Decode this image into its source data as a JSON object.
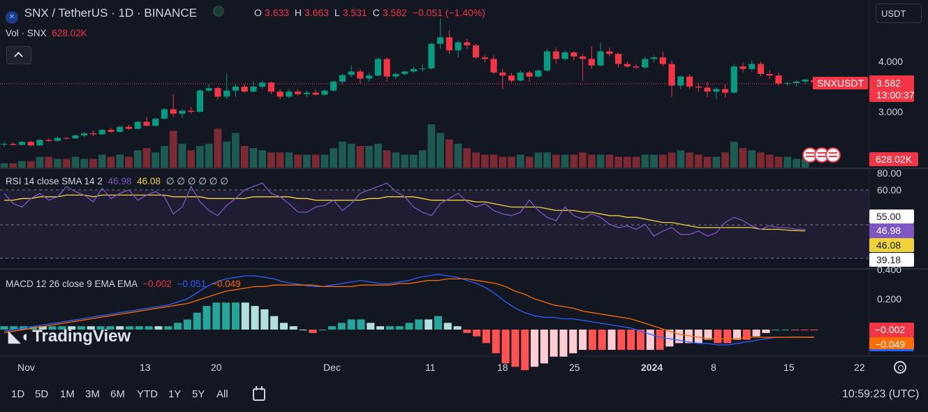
{
  "header": {
    "symbol_title": "SNX / TetherUS · 1D · BINANCE",
    "ohlc": {
      "o_label": "O",
      "o": "3.633",
      "h_label": "H",
      "h": "3.663",
      "l_label": "L",
      "l": "3.531",
      "c_label": "C",
      "c": "3.582",
      "change": "−0.051 (−1.40%)"
    },
    "volume_label": "Vol · SNX",
    "volume_value": "628.02K",
    "currency": "USDT"
  },
  "rsi": {
    "legend": "RSI 14 close SMA 14 2",
    "rsi_value": "46.98",
    "sma_value": "46.08",
    "extra": "∅ ∅ ∅ ∅ ∅ ∅"
  },
  "macd": {
    "legend": "MACD 12 26 close 9 EMA EMA",
    "hist_value": "−0.002",
    "macd_value": "−0.051",
    "signal_value": "−0.049"
  },
  "price_axis": {
    "labels": [
      "4.000",
      "3.000"
    ],
    "symbol_tag": "SNXUSDT",
    "last_price": "3.582",
    "countdown": "13:00:37",
    "volume_tag": "628.02K",
    "rsi_labels": [
      "80.00",
      "60.00",
      "55.00",
      "46.98",
      "46.08",
      "39.18"
    ],
    "macd_labels": [
      "0.400",
      "0.200",
      "−0.002",
      "−0.049"
    ]
  },
  "time_axis": [
    "Nov",
    "13",
    "20",
    "Dec",
    "11",
    "18",
    "25",
    "2024",
    "8",
    "15",
    "22"
  ],
  "bottom_bar": {
    "ranges": [
      "1D",
      "5D",
      "1M",
      "3M",
      "6M",
      "YTD",
      "1Y",
      "5Y",
      "All"
    ],
    "clock": "10:59:23 (UTC)"
  },
  "branding": "TradingView",
  "colors": {
    "up": "#089981",
    "down": "#f23645",
    "rsi": "#7e57c2",
    "rsi_sma": "#f0d33a",
    "macd": "#2962ff",
    "signal": "#ff6d00",
    "bg": "#131722"
  },
  "chart_data": {
    "type": "candlestick",
    "symbol": "SNX / TetherUS",
    "interval": "1D",
    "ylim": [
      2.3,
      5.0
    ],
    "candles": [
      {
        "o": 2.35,
        "h": 2.4,
        "l": 2.3,
        "c": 2.36
      },
      {
        "o": 2.36,
        "h": 2.39,
        "l": 2.32,
        "c": 2.34
      },
      {
        "o": 2.34,
        "h": 2.42,
        "l": 2.33,
        "c": 2.4
      },
      {
        "o": 2.4,
        "h": 2.42,
        "l": 2.31,
        "c": 2.33
      },
      {
        "o": 2.33,
        "h": 2.45,
        "l": 2.32,
        "c": 2.44
      },
      {
        "o": 2.44,
        "h": 2.47,
        "l": 2.4,
        "c": 2.42
      },
      {
        "o": 2.42,
        "h": 2.5,
        "l": 2.41,
        "c": 2.48
      },
      {
        "o": 2.48,
        "h": 2.49,
        "l": 2.44,
        "c": 2.47
      },
      {
        "o": 2.47,
        "h": 2.55,
        "l": 2.46,
        "c": 2.53
      },
      {
        "o": 2.53,
        "h": 2.6,
        "l": 2.5,
        "c": 2.57
      },
      {
        "o": 2.57,
        "h": 2.62,
        "l": 2.52,
        "c": 2.55
      },
      {
        "o": 2.55,
        "h": 2.66,
        "l": 2.54,
        "c": 2.64
      },
      {
        "o": 2.64,
        "h": 2.68,
        "l": 2.58,
        "c": 2.6
      },
      {
        "o": 2.6,
        "h": 2.72,
        "l": 2.59,
        "c": 2.7
      },
      {
        "o": 2.7,
        "h": 2.74,
        "l": 2.64,
        "c": 2.66
      },
      {
        "o": 2.66,
        "h": 2.82,
        "l": 2.65,
        "c": 2.8
      },
      {
        "o": 2.8,
        "h": 2.9,
        "l": 2.7,
        "c": 2.72
      },
      {
        "o": 2.72,
        "h": 2.88,
        "l": 2.7,
        "c": 2.86
      },
      {
        "o": 2.86,
        "h": 3.07,
        "l": 2.85,
        "c": 3.05
      },
      {
        "o": 3.05,
        "h": 3.35,
        "l": 2.9,
        "c": 2.96
      },
      {
        "o": 2.96,
        "h": 3.05,
        "l": 2.88,
        "c": 3.02
      },
      {
        "o": 3.02,
        "h": 3.1,
        "l": 2.95,
        "c": 3.0
      },
      {
        "o": 3.0,
        "h": 3.45,
        "l": 2.98,
        "c": 3.42
      },
      {
        "o": 3.42,
        "h": 3.55,
        "l": 3.38,
        "c": 3.47
      },
      {
        "o": 3.47,
        "h": 3.5,
        "l": 3.25,
        "c": 3.3
      },
      {
        "o": 3.3,
        "h": 3.75,
        "l": 3.25,
        "c": 3.42
      },
      {
        "o": 3.42,
        "h": 3.55,
        "l": 3.3,
        "c": 3.5
      },
      {
        "o": 3.5,
        "h": 3.55,
        "l": 3.38,
        "c": 3.4
      },
      {
        "o": 3.4,
        "h": 3.6,
        "l": 3.38,
        "c": 3.5
      },
      {
        "o": 3.5,
        "h": 3.62,
        "l": 3.45,
        "c": 3.58
      },
      {
        "o": 3.58,
        "h": 3.6,
        "l": 3.35,
        "c": 3.4
      },
      {
        "o": 3.4,
        "h": 3.45,
        "l": 3.25,
        "c": 3.3
      },
      {
        "o": 3.3,
        "h": 3.45,
        "l": 3.27,
        "c": 3.4
      },
      {
        "o": 3.4,
        "h": 3.44,
        "l": 3.32,
        "c": 3.35
      },
      {
        "o": 3.35,
        "h": 3.42,
        "l": 3.3,
        "c": 3.38
      },
      {
        "o": 3.38,
        "h": 3.45,
        "l": 3.32,
        "c": 3.34
      },
      {
        "o": 3.34,
        "h": 3.45,
        "l": 3.32,
        "c": 3.42
      },
      {
        "o": 3.42,
        "h": 3.62,
        "l": 3.4,
        "c": 3.6
      },
      {
        "o": 3.6,
        "h": 3.75,
        "l": 3.55,
        "c": 3.73
      },
      {
        "o": 3.73,
        "h": 3.92,
        "l": 3.68,
        "c": 3.8
      },
      {
        "o": 3.8,
        "h": 3.85,
        "l": 3.55,
        "c": 3.66
      },
      {
        "o": 3.66,
        "h": 3.78,
        "l": 3.6,
        "c": 3.72
      },
      {
        "o": 3.72,
        "h": 4.08,
        "l": 3.7,
        "c": 4.05
      },
      {
        "o": 4.05,
        "h": 4.08,
        "l": 3.6,
        "c": 3.7
      },
      {
        "o": 3.7,
        "h": 3.78,
        "l": 3.65,
        "c": 3.75
      },
      {
        "o": 3.75,
        "h": 3.82,
        "l": 3.72,
        "c": 3.8
      },
      {
        "o": 3.8,
        "h": 3.9,
        "l": 3.78,
        "c": 3.85
      },
      {
        "o": 3.85,
        "h": 3.95,
        "l": 3.8,
        "c": 3.86
      },
      {
        "o": 3.86,
        "h": 4.38,
        "l": 3.84,
        "c": 4.35
      },
      {
        "o": 4.35,
        "h": 4.85,
        "l": 4.25,
        "c": 4.48
      },
      {
        "o": 4.48,
        "h": 4.62,
        "l": 4.15,
        "c": 4.22
      },
      {
        "o": 4.22,
        "h": 4.42,
        "l": 4.08,
        "c": 4.38
      },
      {
        "o": 4.38,
        "h": 4.45,
        "l": 4.25,
        "c": 4.32
      },
      {
        "o": 4.32,
        "h": 4.35,
        "l": 4.05,
        "c": 4.08
      },
      {
        "o": 4.08,
        "h": 4.12,
        "l": 3.98,
        "c": 4.05
      },
      {
        "o": 4.05,
        "h": 4.12,
        "l": 3.75,
        "c": 3.78
      },
      {
        "o": 3.78,
        "h": 3.85,
        "l": 3.45,
        "c": 3.72
      },
      {
        "o": 3.72,
        "h": 3.78,
        "l": 3.58,
        "c": 3.62
      },
      {
        "o": 3.62,
        "h": 3.82,
        "l": 3.6,
        "c": 3.78
      },
      {
        "o": 3.78,
        "h": 3.82,
        "l": 3.6,
        "c": 3.7
      },
      {
        "o": 3.7,
        "h": 3.85,
        "l": 3.68,
        "c": 3.82
      },
      {
        "o": 3.82,
        "h": 4.25,
        "l": 3.8,
        "c": 4.2
      },
      {
        "o": 4.2,
        "h": 4.28,
        "l": 3.95,
        "c": 4.05
      },
      {
        "o": 4.05,
        "h": 4.22,
        "l": 4.02,
        "c": 4.18
      },
      {
        "o": 4.18,
        "h": 4.2,
        "l": 4.02,
        "c": 4.1
      },
      {
        "o": 4.1,
        "h": 4.15,
        "l": 3.62,
        "c": 4.05
      },
      {
        "o": 4.05,
        "h": 4.3,
        "l": 3.85,
        "c": 3.92
      },
      {
        "o": 3.92,
        "h": 4.38,
        "l": 3.9,
        "c": 4.2
      },
      {
        "o": 4.2,
        "h": 4.28,
        "l": 4.1,
        "c": 4.15
      },
      {
        "o": 4.15,
        "h": 4.18,
        "l": 3.88,
        "c": 3.95
      },
      {
        "o": 3.95,
        "h": 4.0,
        "l": 3.88,
        "c": 3.9
      },
      {
        "o": 3.9,
        "h": 3.95,
        "l": 3.85,
        "c": 3.88
      },
      {
        "o": 3.88,
        "h": 4.1,
        "l": 3.86,
        "c": 4.05
      },
      {
        "o": 4.05,
        "h": 4.12,
        "l": 3.98,
        "c": 4.08
      },
      {
        "o": 4.08,
        "h": 4.2,
        "l": 3.9,
        "c": 3.95
      },
      {
        "o": 3.95,
        "h": 4.02,
        "l": 3.3,
        "c": 3.52
      },
      {
        "o": 3.52,
        "h": 3.72,
        "l": 3.45,
        "c": 3.7
      },
      {
        "o": 3.7,
        "h": 3.75,
        "l": 3.45,
        "c": 3.5
      },
      {
        "o": 3.5,
        "h": 3.58,
        "l": 3.4,
        "c": 3.48
      },
      {
        "o": 3.48,
        "h": 3.6,
        "l": 3.3,
        "c": 3.4
      },
      {
        "o": 3.4,
        "h": 3.48,
        "l": 3.25,
        "c": 3.45
      },
      {
        "o": 3.45,
        "h": 3.55,
        "l": 3.28,
        "c": 3.38
      },
      {
        "o": 3.38,
        "h": 3.95,
        "l": 3.36,
        "c": 3.9
      },
      {
        "o": 3.9,
        "h": 3.98,
        "l": 3.78,
        "c": 3.85
      },
      {
        "o": 3.85,
        "h": 4.02,
        "l": 3.8,
        "c": 3.95
      },
      {
        "o": 3.95,
        "h": 4.0,
        "l": 3.7,
        "c": 3.75
      },
      {
        "o": 3.75,
        "h": 3.82,
        "l": 3.65,
        "c": 3.72
      },
      {
        "o": 3.72,
        "h": 3.78,
        "l": 3.52,
        "c": 3.56
      },
      {
        "o": 3.56,
        "h": 3.6,
        "l": 3.52,
        "c": 3.57
      },
      {
        "o": 3.57,
        "h": 3.62,
        "l": 3.5,
        "c": 3.6
      },
      {
        "o": 3.6,
        "h": 3.65,
        "l": 3.55,
        "c": 3.64
      },
      {
        "o": 3.633,
        "h": 3.663,
        "l": 3.531,
        "c": 3.582
      }
    ],
    "volume": [
      2,
      2,
      3,
      3,
      5,
      5,
      4,
      4,
      5,
      4,
      4,
      6,
      5,
      6,
      5,
      8,
      9,
      7,
      10,
      17,
      11,
      8,
      10,
      11,
      18,
      12,
      16,
      10,
      9,
      8,
      7,
      7,
      7,
      6,
      6,
      6,
      6,
      9,
      12,
      11,
      10,
      10,
      11,
      8,
      7,
      6,
      6,
      8,
      20,
      16,
      13,
      11,
      9,
      7,
      6,
      6,
      5,
      5,
      6,
      5,
      7,
      7,
      6,
      6,
      6,
      7,
      6,
      6,
      6,
      5,
      5,
      5,
      6,
      6,
      6,
      7,
      8,
      7,
      6,
      5,
      5,
      7,
      12,
      9,
      8,
      7,
      6,
      5,
      5,
      4,
      4
    ],
    "rsi": [
      68,
      62,
      60,
      65,
      68,
      64,
      66,
      72,
      69,
      67,
      63,
      71,
      65,
      68,
      70,
      64,
      67,
      69,
      66,
      56,
      60,
      72,
      63,
      58,
      55,
      61,
      65,
      70,
      72,
      74,
      68,
      66,
      62,
      57,
      57,
      60,
      61,
      64,
      58,
      62,
      68,
      70,
      72,
      74,
      69,
      66,
      60,
      57,
      55,
      62,
      65,
      68,
      63,
      60,
      62,
      58,
      56,
      55,
      57,
      64,
      58,
      54,
      52,
      60,
      55,
      53,
      56,
      54,
      50,
      48,
      49,
      47,
      50,
      43,
      46,
      48,
      44,
      44,
      46,
      43,
      45,
      51,
      54,
      52,
      49,
      47,
      49,
      48,
      48,
      47,
      46.98
    ],
    "rsi_sma": [
      64,
      64,
      65,
      65,
      66,
      66,
      66,
      67,
      67,
      67,
      66,
      67,
      67,
      67,
      67,
      67,
      67,
      67,
      67,
      66,
      66,
      66,
      66,
      65,
      65,
      65,
      65,
      65,
      66,
      66,
      66,
      66,
      66,
      65,
      65,
      64,
      64,
      64,
      64,
      64,
      64,
      65,
      65,
      66,
      66,
      66,
      66,
      65,
      64,
      64,
      64,
      64,
      64,
      63,
      63,
      62,
      61,
      60,
      60,
      60,
      60,
      59,
      58,
      58,
      58,
      57,
      57,
      56,
      55,
      55,
      54,
      54,
      53,
      52,
      51,
      51,
      50,
      49,
      48,
      48,
      48,
      48,
      48,
      48,
      48,
      47,
      47,
      47,
      46.5,
      46.2,
      46.08
    ],
    "macd": [
      -0.01,
      0.0,
      0.01,
      0.02,
      0.03,
      0.04,
      0.05,
      0.06,
      0.07,
      0.08,
      0.09,
      0.1,
      0.11,
      0.12,
      0.13,
      0.14,
      0.15,
      0.16,
      0.18,
      0.2,
      0.24,
      0.28,
      0.31,
      0.33,
      0.34,
      0.35,
      0.35,
      0.34,
      0.33,
      0.31,
      0.3,
      0.29,
      0.28,
      0.28,
      0.29,
      0.3,
      0.31,
      0.32,
      0.31,
      0.3,
      0.3,
      0.31,
      0.32,
      0.34,
      0.35,
      0.36,
      0.35,
      0.34,
      0.32,
      0.3,
      0.27,
      0.23,
      0.18,
      0.14,
      0.11,
      0.09,
      0.08,
      0.08,
      0.07,
      0.07,
      0.06,
      0.05,
      0.04,
      0.03,
      0.02,
      0.01,
      -0.01,
      -0.03,
      -0.05,
      -0.06,
      -0.07,
      -0.08,
      -0.09,
      -0.09,
      -0.1,
      -0.1,
      -0.09,
      -0.08,
      -0.07,
      -0.06,
      -0.05,
      -0.05,
      -0.05,
      -0.05,
      -0.051
    ],
    "signal": [
      -0.02,
      -0.01,
      0.0,
      0.01,
      0.02,
      0.03,
      0.04,
      0.05,
      0.06,
      0.07,
      0.08,
      0.09,
      0.1,
      0.11,
      0.12,
      0.13,
      0.14,
      0.15,
      0.16,
      0.17,
      0.19,
      0.21,
      0.23,
      0.25,
      0.26,
      0.27,
      0.28,
      0.28,
      0.29,
      0.29,
      0.29,
      0.29,
      0.29,
      0.28,
      0.28,
      0.28,
      0.28,
      0.29,
      0.29,
      0.29,
      0.29,
      0.3,
      0.3,
      0.31,
      0.32,
      0.32,
      0.33,
      0.33,
      0.33,
      0.32,
      0.31,
      0.3,
      0.28,
      0.25,
      0.23,
      0.2,
      0.18,
      0.16,
      0.15,
      0.14,
      0.12,
      0.11,
      0.1,
      0.09,
      0.08,
      0.07,
      0.05,
      0.03,
      0.01,
      -0.01,
      -0.03,
      -0.04,
      -0.05,
      -0.06,
      -0.06,
      -0.06,
      -0.06,
      -0.05,
      -0.05,
      -0.05,
      -0.05,
      -0.05,
      -0.049,
      -0.049,
      -0.049
    ],
    "macd_ylim": [
      -0.12,
      0.42
    ],
    "rsi_ylim": [
      30,
      80
    ]
  }
}
